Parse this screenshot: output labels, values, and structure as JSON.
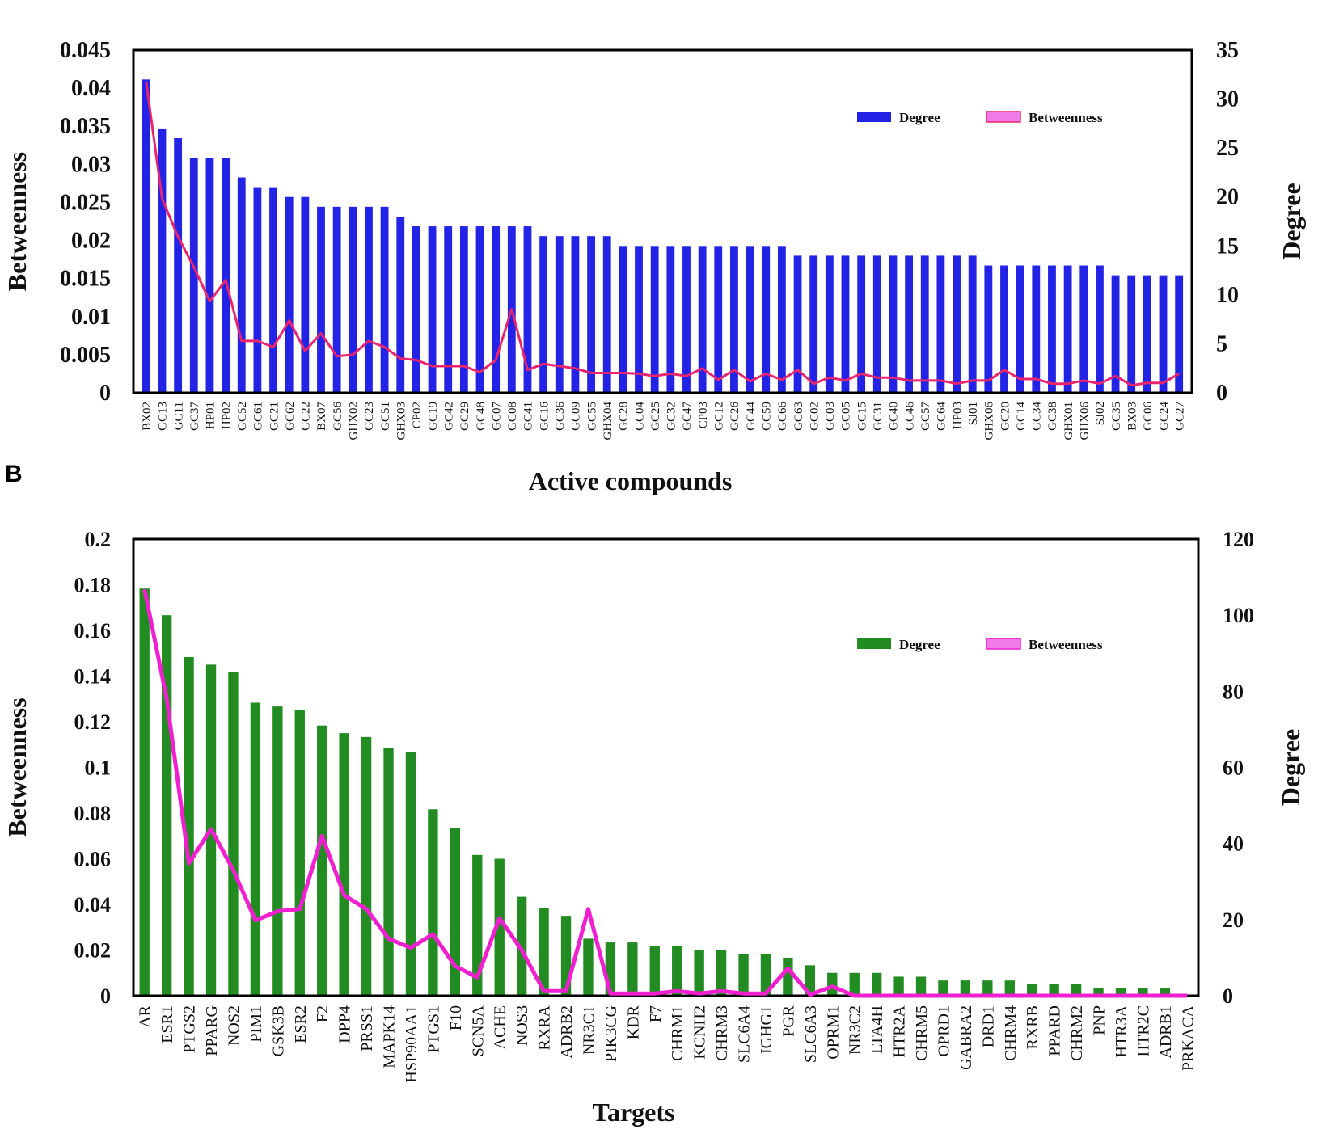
{
  "chart_data": [
    {
      "type": "bar",
      "panel": "",
      "xlabel": "Active compounds",
      "ylabel_left": "Betweenness",
      "ylabel_right": "Degree",
      "yleft_range": [
        0,
        0.045
      ],
      "yleft_ticks": [
        "0",
        "0.005",
        "0.01",
        "0.015",
        "0.02",
        "0.025",
        "0.03",
        "0.035",
        "0.04",
        "0.045"
      ],
      "yright_range": [
        0,
        35
      ],
      "yright_ticks": [
        "0",
        "5",
        "10",
        "15",
        "20",
        "25",
        "30",
        "35"
      ],
      "legend": [
        "Degree",
        "Betweenness"
      ],
      "legend_position": "top-right",
      "bar_color": "#2323e6",
      "line_color": "#e8246e",
      "categories": [
        "BX02",
        "GC13",
        "GC11",
        "GC37",
        "HP01",
        "HP02",
        "GC52",
        "GC61",
        "GC21",
        "GC62",
        "GC22",
        "BX07",
        "GC56",
        "GHX02",
        "GC23",
        "GC51",
        "GHX03",
        "CP02",
        "GC19",
        "GC42",
        "GC29",
        "GC48",
        "GC07",
        "GC08",
        "GC41",
        "GC16",
        "GC36",
        "GC09",
        "GC55",
        "GHX04",
        "GC28",
        "GC04",
        "GC25",
        "GC32",
        "GC47",
        "CP03",
        "GC12",
        "GC26",
        "GC44",
        "GC59",
        "GC66",
        "GC63",
        "GC02",
        "GC03",
        "GC05",
        "GC15",
        "GC31",
        "GC40",
        "GC46",
        "GC57",
        "GC64",
        "HP03",
        "SJ01",
        "GHX06",
        "GC20",
        "GC14",
        "GC34",
        "GC38",
        "GHX01",
        "GHX06",
        "SJ02",
        "GC35",
        "BX03",
        "GC06",
        "GC24",
        "GC27"
      ],
      "series": [
        {
          "name": "Degree",
          "axis": "right",
          "kind": "bar",
          "values": [
            32,
            27,
            26,
            24,
            24,
            24,
            22,
            21,
            21,
            20,
            20,
            19,
            19,
            19,
            19,
            19,
            18,
            17,
            17,
            17,
            17,
            17,
            17,
            17,
            17,
            16,
            16,
            16,
            16,
            16,
            15,
            15,
            15,
            15,
            15,
            15,
            15,
            15,
            15,
            15,
            15,
            14,
            14,
            14,
            14,
            14,
            14,
            14,
            14,
            14,
            14,
            14,
            14,
            13,
            13,
            13,
            13,
            13,
            13,
            13,
            13,
            12,
            12,
            12,
            12,
            12
          ]
        },
        {
          "name": "Betweenness",
          "axis": "left",
          "kind": "line",
          "values": [
            0.0408,
            0.0255,
            0.0205,
            0.0165,
            0.012,
            0.0148,
            0.0068,
            0.0068,
            0.006,
            0.0095,
            0.0055,
            0.0078,
            0.0048,
            0.005,
            0.0068,
            0.006,
            0.0045,
            0.0043,
            0.0035,
            0.0035,
            0.0035,
            0.0027,
            0.0043,
            0.011,
            0.003,
            0.0038,
            0.0035,
            0.0032,
            0.0026,
            0.0026,
            0.0026,
            0.0025,
            0.0022,
            0.0025,
            0.0022,
            0.0032,
            0.0017,
            0.003,
            0.0015,
            0.0025,
            0.0017,
            0.003,
            0.0012,
            0.002,
            0.0016,
            0.0025,
            0.002,
            0.002,
            0.0016,
            0.0016,
            0.0016,
            0.0012,
            0.0016,
            0.0016,
            0.003,
            0.0018,
            0.0018,
            0.0012,
            0.0012,
            0.0016,
            0.0012,
            0.0022,
            0.001,
            0.0013,
            0.0013,
            0.0025
          ]
        }
      ]
    },
    {
      "type": "bar",
      "panel": "B",
      "xlabel": "Targets",
      "ylabel_left": "Betweenness",
      "ylabel_right": "Degree",
      "yleft_range": [
        0,
        0.2
      ],
      "yleft_ticks": [
        "0",
        "0.02",
        "0.04",
        "0.06",
        "0.08",
        "0.1",
        "0.12",
        "0.14",
        "0.16",
        "0.18",
        "0.2"
      ],
      "yright_range": [
        0,
        120
      ],
      "yright_ticks": [
        "0",
        "20",
        "40",
        "60",
        "80",
        "100",
        "120"
      ],
      "legend": [
        "Degree",
        "Betweenness"
      ],
      "legend_position": "top-right",
      "bar_color": "#228b22",
      "line_color": "#f020d0",
      "categories": [
        "AR",
        "ESR1",
        "PTGS2",
        "PPARG",
        "NOS2",
        "PIM1",
        "GSK3B",
        "ESR2",
        "F2",
        "DPP4",
        "PRSS1",
        "MAPK14",
        "HSP90AA1",
        "PTGS1",
        "F10",
        "SCN5A",
        "ACHE",
        "NOS3",
        "RXRA",
        "ADRB2",
        "NR3C1",
        "PIK3CG",
        "KDR",
        "F7",
        "CHRM1",
        "KCNH2",
        "CHRM3",
        "SLC6A4",
        "IGHG1",
        "PGR",
        "SLC6A3",
        "OPRM1",
        "NR3C2",
        "LTA4H",
        "HTR2A",
        "CHRM5",
        "OPRD1",
        "GABRA2",
        "DRD1",
        "CHRM4",
        "RXRB",
        "PPARD",
        "CHRM2",
        "PNP",
        "HTR3A",
        "HTR2C",
        "ADRB1",
        "PRKACA"
      ],
      "series": [
        {
          "name": "Degree",
          "axis": "right",
          "kind": "bar",
          "values": [
            107,
            100,
            89,
            87,
            85,
            77,
            76,
            75,
            71,
            69,
            68,
            65,
            64,
            49,
            44,
            37,
            36,
            26,
            23,
            21,
            15,
            14,
            14,
            13,
            13,
            12,
            12,
            11,
            11,
            10,
            8,
            6,
            6,
            6,
            5,
            5,
            4,
            4,
            4,
            4,
            3,
            3,
            3,
            2,
            2,
            2,
            2,
            0
          ]
        },
        {
          "name": "Betweenness",
          "axis": "left",
          "kind": "line",
          "values": [
            0.178,
            0.13,
            0.058,
            0.073,
            0.055,
            0.033,
            0.037,
            0.038,
            0.07,
            0.044,
            0.038,
            0.025,
            0.021,
            0.027,
            0.013,
            0.008,
            0.034,
            0.02,
            0.002,
            0.002,
            0.038,
            0.001,
            0.001,
            0.001,
            0.002,
            0.001,
            0.002,
            0.001,
            0.001,
            0.012,
            0.0005,
            0.004,
            0,
            0,
            0,
            0,
            0,
            0,
            0,
            0,
            0,
            0,
            0,
            0,
            0,
            0,
            0,
            0
          ]
        }
      ]
    }
  ]
}
